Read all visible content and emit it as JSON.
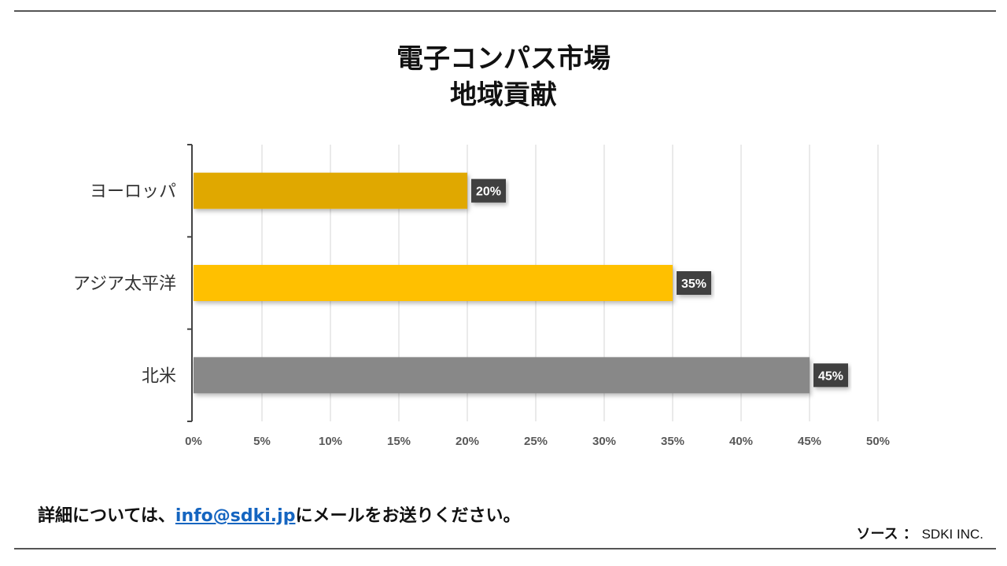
{
  "chart_data": {
    "type": "bar",
    "orientation": "horizontal",
    "title": "電子コンパス市場",
    "subtitle": "地域貢献",
    "categories": [
      "ヨーロッパ",
      "アジア太平洋",
      "北米"
    ],
    "values": [
      20,
      35,
      45
    ],
    "data_labels": [
      "20%",
      "35%",
      "45%"
    ],
    "colors": [
      "#e0a800",
      "#ffc000",
      "#888888"
    ],
    "xlim": [
      0,
      50
    ],
    "xticks": [
      0,
      5,
      10,
      15,
      20,
      25,
      30,
      35,
      40,
      45,
      50
    ],
    "xtick_labels": [
      "0%",
      "5%",
      "10%",
      "15%",
      "20%",
      "25%",
      "30%",
      "35%",
      "40%",
      "45%",
      "50%"
    ],
    "grid": true,
    "xlabel": "",
    "ylabel": ""
  },
  "footer": {
    "prefix": "詳細については、",
    "email": "info@sdki.jp",
    "suffix": "にメールをお送りください。"
  },
  "source": {
    "label": "ソース ：",
    "value": "SDKI INC."
  }
}
